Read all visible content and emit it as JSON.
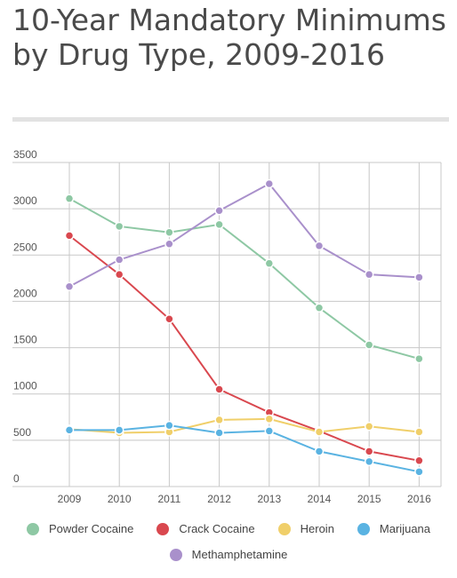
{
  "chart_data": {
    "type": "line",
    "title": "10-Year Mandatory Minimums by Drug Type, 2009-2016",
    "xlabel": "",
    "ylabel": "",
    "x": [
      "2009",
      "2010",
      "2011",
      "2012",
      "2013",
      "2014",
      "2015",
      "2016"
    ],
    "ylim": [
      0,
      3500
    ],
    "yticks": [
      "0",
      "500",
      "1000",
      "1500",
      "2000",
      "2500",
      "3000",
      "3500"
    ],
    "grid": true,
    "legend_position": "bottom",
    "series": [
      {
        "name": "Powder Cocaine",
        "color": "#8ec8a4",
        "values": [
          3110,
          2810,
          2745,
          2830,
          2410,
          1930,
          1530,
          1380
        ]
      },
      {
        "name": "Crack Cocaine",
        "color": "#d9484f",
        "values": [
          2710,
          2290,
          1810,
          1050,
          800,
          600,
          380,
          280
        ]
      },
      {
        "name": "Heroin",
        "color": "#f0cf6a",
        "values": [
          620,
          580,
          590,
          720,
          730,
          590,
          650,
          590
        ]
      },
      {
        "name": "Marijuana",
        "color": "#5ab3e2",
        "values": [
          610,
          610,
          660,
          580,
          600,
          380,
          270,
          160
        ]
      },
      {
        "name": "Methamphetamine",
        "color": "#a990cb",
        "values": [
          2160,
          2450,
          2620,
          2980,
          3270,
          2600,
          2290,
          2260
        ]
      }
    ]
  }
}
